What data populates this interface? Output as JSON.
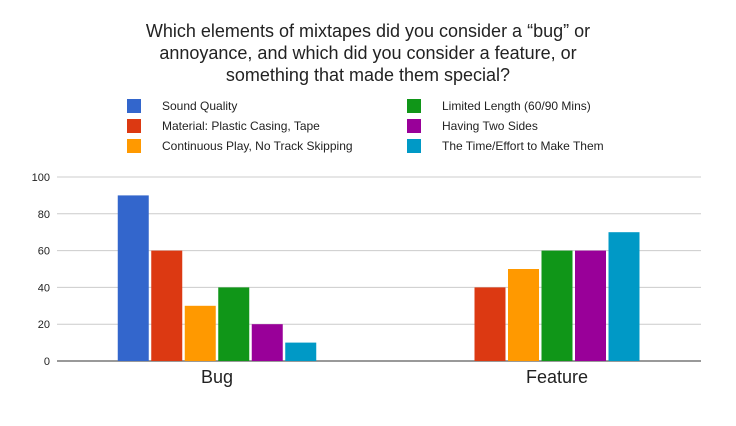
{
  "chart_data": {
    "type": "bar",
    "title_lines": [
      "Which elements of mixtapes did you consider a “bug” or",
      "annoyance, and which did you consider a feature, or",
      "something that made them special?"
    ],
    "categories": [
      "Bug",
      "Feature"
    ],
    "series": [
      {
        "name": "Sound Quality",
        "color": "#3366cc",
        "values": [
          90,
          null
        ]
      },
      {
        "name": "Material: Plastic Casing, Tape",
        "color": "#dc3912",
        "values": [
          60,
          40
        ]
      },
      {
        "name": "Continuous Play, No Track Skipping",
        "color": "#ff9900",
        "values": [
          30,
          50
        ]
      },
      {
        "name": "Limited Length (60/90 Mins)",
        "color": "#109618",
        "values": [
          40,
          60
        ]
      },
      {
        "name": "Having Two Sides",
        "color": "#990099",
        "values": [
          20,
          60
        ]
      },
      {
        "name": "The Time/Effort to Make Them",
        "color": "#0099c6",
        "values": [
          10,
          70
        ]
      }
    ],
    "ylim": [
      0,
      100
    ],
    "yticks": [
      0,
      20,
      40,
      60,
      80,
      100
    ],
    "xlabel": "",
    "ylabel": "",
    "grid": true,
    "legend_position": "top"
  }
}
